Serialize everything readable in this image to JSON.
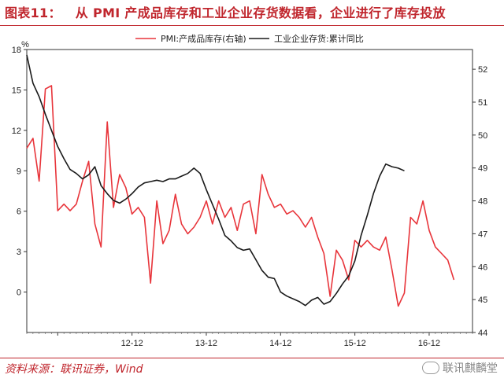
{
  "title": {
    "label": "图表11：",
    "text": "从 PMI 产成品库存和工业企业存货数据看，企业进行了库存投放"
  },
  "footer": {
    "source": "资料来源：联讯证券，Wind"
  },
  "watermark": {
    "text": "联讯麒麟堂"
  },
  "chart_data": {
    "type": "line",
    "left_axis": {
      "unit": "%",
      "ticks": [
        "0",
        "3",
        "6",
        "9",
        "12",
        "15",
        "18"
      ],
      "ylim": [
        -3,
        18
      ]
    },
    "right_axis": {
      "ticks": [
        "44",
        "45",
        "46",
        "47",
        "48",
        "49",
        "50",
        "51",
        "52"
      ],
      "ylim": [
        44,
        52.6
      ]
    },
    "x_ticks": [
      "12-12",
      "13-12",
      "14-12",
      "15-12",
      "16-12"
    ],
    "legend_placement": "top",
    "series": [
      {
        "name": "PMI:产成品库存(右轴)",
        "axis": "right",
        "color": "#e8353b",
        "x_start": "2011-07",
        "values": [
          49.6,
          49.9,
          48.6,
          51.4,
          51.5,
          47.7,
          47.9,
          47.7,
          47.9,
          48.6,
          49.2,
          47.3,
          46.6,
          50.4,
          47.8,
          48.8,
          48.4,
          47.6,
          47.8,
          47.5,
          45.5,
          48.0,
          46.7,
          47.1,
          48.2,
          47.3,
          47.0,
          47.2,
          47.5,
          48.0,
          47.3,
          48.0,
          47.5,
          47.8,
          47.1,
          47.9,
          48.0,
          47.0,
          48.8,
          48.2,
          47.8,
          47.9,
          47.6,
          47.7,
          47.5,
          47.2,
          47.5,
          46.9,
          46.4,
          45.1,
          46.5,
          46.2,
          45.6,
          46.8,
          46.6,
          46.8,
          46.6,
          46.5,
          46.9,
          45.9,
          44.8,
          45.2,
          47.5,
          47.3,
          48.0,
          47.1,
          46.6,
          46.4,
          46.2,
          45.6
        ]
      },
      {
        "name": "工业企业存货:累计同比",
        "axis": "left",
        "color": "#1a1a1a",
        "x_start": "2011-07",
        "values": [
          17.6,
          15.5,
          14.5,
          13.2,
          12.0,
          10.8,
          9.9,
          9.1,
          8.8,
          8.4,
          8.7,
          9.3,
          7.9,
          7.3,
          6.8,
          6.6,
          6.9,
          7.3,
          7.8,
          8.1,
          8.2,
          8.3,
          8.2,
          8.4,
          8.4,
          8.6,
          8.8,
          9.2,
          8.8,
          7.6,
          6.5,
          5.4,
          4.2,
          3.8,
          3.3,
          3.1,
          3.2,
          2.4,
          1.6,
          1.1,
          1.0,
          0.0,
          -0.3,
          -0.5,
          -0.7,
          -1.0,
          -0.6,
          -0.4,
          -0.9,
          -0.7,
          -0.1,
          0.6,
          1.2,
          2.3,
          4.2,
          5.7,
          7.3,
          8.6,
          9.5,
          9.3,
          9.2,
          9.0
        ]
      }
    ]
  }
}
